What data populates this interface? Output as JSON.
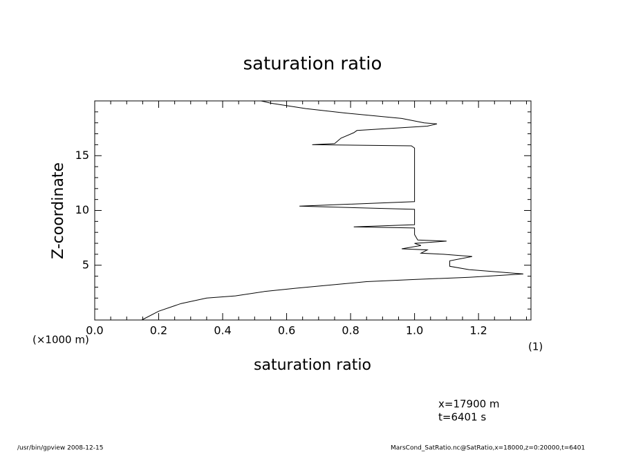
{
  "chart_data": {
    "type": "line",
    "value_axis": "horizontal",
    "title": "saturation ratio",
    "xlabel": "saturation ratio",
    "ylabel": "Z-coordinate",
    "y_unit": "(×1000 m)",
    "x_unit": "(1)",
    "annotations": [
      "x=17900 m",
      "t=6401 s"
    ],
    "footer_left": "/usr/bin/gpview   2008-12-15",
    "footer_right": "MarsCond_SatRatio.nc@SatRatio,x=18000,z=0:20000,t=6401",
    "xlim": [
      0,
      1.364
    ],
    "ylim": [
      0,
      20
    ],
    "xticks": [
      {
        "value": 0,
        "label": "0.0"
      },
      0.2,
      0.4,
      0.6,
      0.8,
      {
        "value": 1,
        "label": "1.0"
      },
      1.2
    ],
    "yticks": [
      5,
      10,
      15
    ],
    "xminorticks": [
      0.05,
      0.1,
      0.15,
      0.25,
      0.3,
      0.35,
      0.45,
      0.5,
      0.55,
      0.65,
      0.7,
      0.75,
      0.85,
      0.9,
      0.95,
      1.05,
      1.1,
      1.15,
      1.25,
      1.3,
      1.35
    ],
    "yminorticks": [
      1,
      2,
      3,
      4,
      6,
      7,
      8,
      9,
      11,
      12,
      13,
      14,
      16,
      17,
      18,
      19
    ],
    "x": [
      0,
      0.8,
      1.5,
      2.0,
      2.2,
      2.6,
      2.9,
      3.2,
      3.5,
      3.7,
      3.9,
      4.2,
      4.6,
      4.9,
      5.4,
      5.8,
      6.0,
      6.1,
      6.4,
      6.5,
      6.8,
      7.0,
      7.2,
      7.3,
      7.8,
      8.4,
      8.5,
      8.7,
      10.1,
      10.4,
      10.8,
      12.8,
      15.7,
      15.9,
      16.0,
      16.1,
      16.6,
      17.1,
      17.3,
      17.7,
      17.9,
      18.0,
      18.4,
      18.9,
      19.3,
      19.8,
      20.0
    ],
    "series": [
      {
        "name": "saturation ratio",
        "color": "#000000",
        "values": [
          0.147,
          0.2,
          0.27,
          0.35,
          0.44,
          0.53,
          0.63,
          0.74,
          0.85,
          1.0,
          1.17,
          1.34,
          1.17,
          1.11,
          1.11,
          1.18,
          1.09,
          1.02,
          1.04,
          0.96,
          1.02,
          1.0,
          1.1,
          1.01,
          1.0,
          1.0,
          0.81,
          1.0,
          1.0,
          0.64,
          1.0,
          1.0,
          1.0,
          0.99,
          0.68,
          0.75,
          0.77,
          0.81,
          0.82,
          1.04,
          1.07,
          1.03,
          0.96,
          0.78,
          0.66,
          0.55,
          0.52
        ]
      }
    ]
  }
}
